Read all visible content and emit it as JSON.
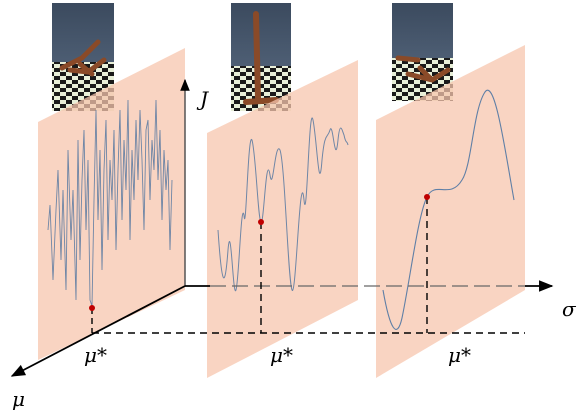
{
  "axes": {
    "vertical": "J",
    "horizontal": "σ",
    "depth": "μ"
  },
  "panels": [
    {
      "label": "μ*"
    },
    {
      "label": "μ*"
    },
    {
      "label": "μ*"
    }
  ]
}
